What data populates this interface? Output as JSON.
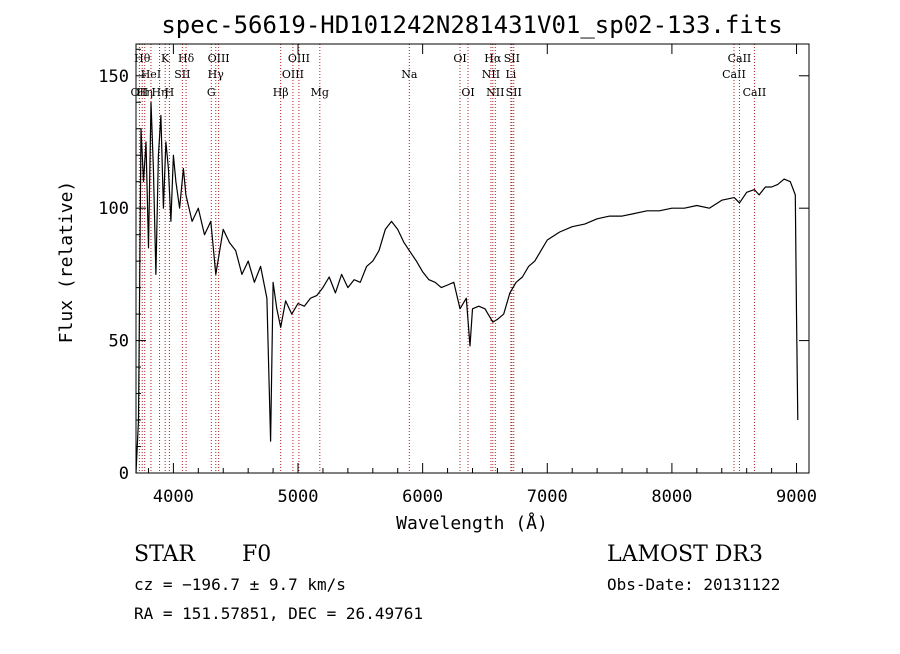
{
  "chart_data": {
    "type": "line",
    "title": "spec-56619-HD101242N281431V01_sp02-133.fits",
    "xlabel": "Wavelength (Å)",
    "ylabel": "Flux (relative)",
    "xlim": [
      3700,
      9100
    ],
    "ylim": [
      0,
      162
    ],
    "x_ticks": [
      4000,
      5000,
      6000,
      7000,
      8000,
      9000
    ],
    "x_tick_labels": [
      "4000",
      "5000",
      "6000",
      "7000",
      "8000",
      "9000"
    ],
    "y_ticks": [
      0,
      50,
      100,
      150
    ],
    "y_tick_labels": [
      "0",
      "50",
      "100",
      "150"
    ],
    "grid": false,
    "series": [
      {
        "color": "#000000",
        "x": [
          3700,
          3720,
          3740,
          3760,
          3780,
          3800,
          3820,
          3840,
          3860,
          3880,
          3900,
          3920,
          3940,
          3960,
          3980,
          4000,
          4020,
          4050,
          4080,
          4100,
          4150,
          4200,
          4250,
          4300,
          4340,
          4400,
          4450,
          4500,
          4550,
          4600,
          4650,
          4700,
          4750,
          4780,
          4800,
          4830,
          4861,
          4900,
          4950,
          5000,
          5050,
          5100,
          5150,
          5200,
          5250,
          5300,
          5350,
          5400,
          5450,
          5500,
          5550,
          5600,
          5650,
          5700,
          5750,
          5800,
          5850,
          5893,
          5950,
          6000,
          6050,
          6100,
          6150,
          6200,
          6250,
          6300,
          6350,
          6380,
          6400,
          6450,
          6500,
          6563,
          6600,
          6650,
          6700,
          6750,
          6800,
          6850,
          6900,
          6950,
          7000,
          7100,
          7200,
          7300,
          7400,
          7500,
          7600,
          7700,
          7800,
          7900,
          8000,
          8100,
          8200,
          8300,
          8400,
          8500,
          8542,
          8600,
          8662,
          8700,
          8750,
          8800,
          8850,
          8900,
          8950,
          8990,
          9000,
          9010
        ],
        "y": [
          0,
          20,
          130,
          110,
          125,
          85,
          140,
          115,
          75,
          120,
          135,
          100,
          125,
          115,
          95,
          120,
          110,
          100,
          115,
          105,
          95,
          100,
          90,
          95,
          75,
          92,
          87,
          84,
          75,
          80,
          72,
          78,
          66,
          12,
          72,
          62,
          55,
          65,
          60,
          64,
          63,
          66,
          67,
          70,
          74,
          68,
          75,
          70,
          73,
          72,
          78,
          80,
          84,
          92,
          95,
          92,
          87,
          84,
          80,
          76,
          73,
          72,
          70,
          71,
          72,
          62,
          66,
          48,
          62,
          63,
          62,
          57,
          58,
          60,
          68,
          72,
          74,
          78,
          80,
          84,
          88,
          91,
          93,
          94,
          96,
          97,
          97,
          98,
          99,
          99,
          100,
          100,
          101,
          100,
          103,
          104,
          102,
          106,
          107,
          105,
          108,
          108,
          109,
          111,
          110,
          105,
          60,
          20
        ]
      }
    ],
    "line_markers": [
      {
        "wavelength": 3727,
        "label": "OII",
        "row": 3
      },
      {
        "wavelength": 3750,
        "label": "Hθ",
        "row": 1
      },
      {
        "wavelength": 3770,
        "label": "Hη",
        "row": 3
      },
      {
        "wavelength": 3820,
        "label": "HeI",
        "row": 2
      },
      {
        "wavelength": 3889,
        "label": "Hη",
        "row": 3
      },
      {
        "wavelength": 3934,
        "label": "K",
        "row": 1
      },
      {
        "wavelength": 3968,
        "label": "H",
        "row": 3
      },
      {
        "wavelength": 4072,
        "label": "SII",
        "row": 2
      },
      {
        "wavelength": 4102,
        "label": "Hδ",
        "row": 1
      },
      {
        "wavelength": 4304,
        "label": "G",
        "row": 3
      },
      {
        "wavelength": 4340,
        "label": "Hγ",
        "row": 2
      },
      {
        "wavelength": 4363,
        "label": "OIII",
        "row": 1
      },
      {
        "wavelength": 4861,
        "label": "Hβ",
        "row": 3
      },
      {
        "wavelength": 4959,
        "label": "OIII",
        "row": 2
      },
      {
        "wavelength": 5007,
        "label": "OIII",
        "row": 1
      },
      {
        "wavelength": 5175,
        "label": "Mg",
        "row": 3
      },
      {
        "wavelength": 5893,
        "label": "Na",
        "row": 2
      },
      {
        "wavelength": 6300,
        "label": "OI",
        "row": 1
      },
      {
        "wavelength": 6364,
        "label": "OI",
        "row": 3
      },
      {
        "wavelength": 6548,
        "label": "NII",
        "row": 2
      },
      {
        "wavelength": 6563,
        "label": "Hα",
        "row": 1
      },
      {
        "wavelength": 6583,
        "label": "NII",
        "row": 3
      },
      {
        "wavelength": 6708,
        "label": "Li",
        "row": 2
      },
      {
        "wavelength": 6716,
        "label": "SII",
        "row": 1
      },
      {
        "wavelength": 6731,
        "label": "SII",
        "row": 3
      },
      {
        "wavelength": 8498,
        "label": "CaII",
        "row": 2
      },
      {
        "wavelength": 8542,
        "label": "CaII",
        "row": 1
      },
      {
        "wavelength": 8662,
        "label": "CaII",
        "row": 3
      }
    ],
    "marker_color": "#b02020"
  },
  "info": {
    "class_label": "STAR",
    "subclass_label": "F0",
    "cz_text": "cz = −196.7 ± 9.7 km/s",
    "coords_text": "RA = 151.57851, DEC =  26.49761",
    "survey_label": "LAMOST DR3",
    "obs_date_text": "Obs-Date: 20131122"
  }
}
